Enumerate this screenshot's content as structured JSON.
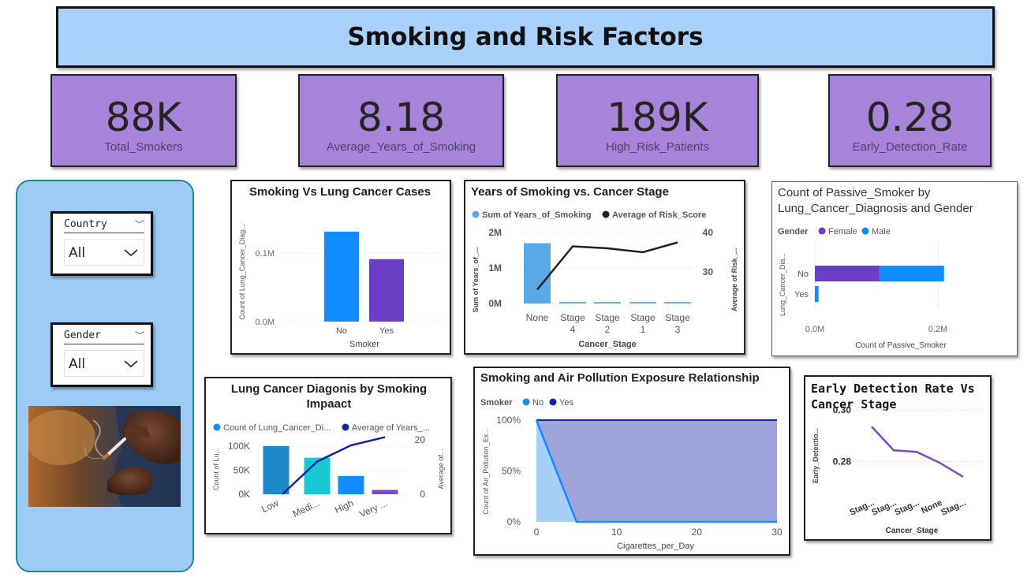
{
  "header": {
    "title": "Smoking and Risk Factors"
  },
  "kpis": [
    {
      "value": "88K",
      "label": "Total_Smokers"
    },
    {
      "value": "8.18",
      "label": "Average_Years_of_Smoking"
    },
    {
      "value": "189K",
      "label": "High_Risk_Patients"
    },
    {
      "value": "0.28",
      "label": "Early_Detection_Rate"
    }
  ],
  "filters": {
    "country": {
      "label": "Country",
      "value": "All"
    },
    "gender": {
      "label": "Gender",
      "value": "All"
    }
  },
  "chart_data": [
    {
      "id": "smoking_vs_cancer",
      "type": "bar",
      "title": "Smoking Vs Lung Cancer Cases",
      "xlabel": "Smoker",
      "ylabel": "Count of Lung_Cancer_Diag...",
      "categories": [
        "No",
        "Yes"
      ],
      "values": [
        131000,
        91000
      ],
      "colors": [
        "#118dff",
        "#6b3fc4"
      ],
      "yticks": [
        "0.0M",
        "0.1M"
      ],
      "ylim": [
        0,
        140000
      ]
    },
    {
      "id": "years_vs_stage",
      "type": "bar",
      "title": "Years of Smoking vs. Cancer Stage",
      "xlabel": "Cancer_Stage",
      "ylabel": "Sum of Years_of_...",
      "y2label": "Average of Risk_...",
      "categories": [
        "None",
        "Stage 4",
        "Stage 2",
        "Stage 1",
        "Stage 3"
      ],
      "series": [
        {
          "name": "Sum of Years_of_Smoking",
          "type": "bar",
          "color": "#5ba8e6",
          "values": [
            1700000,
            40000,
            40000,
            40000,
            40000
          ]
        },
        {
          "name": "Average of Risk_Score",
          "type": "line",
          "color": "#222222",
          "values": [
            25.5,
            36.5,
            36,
            35,
            37.5
          ]
        }
      ],
      "yticks": [
        "0M",
        "1M",
        "2M"
      ],
      "ylim": [
        0,
        2000000
      ],
      "y2ticks": [
        "30",
        "40"
      ],
      "y2lim": [
        22,
        40
      ]
    },
    {
      "id": "passive_smoker",
      "type": "bar",
      "title": "Count of Passive_Smoker by Lung_Cancer_Diagnosis and Gender",
      "legend_title": "Gender",
      "xlabel": "Count of Passive_Smoker",
      "ylabel": "Lung_Cancer_Dia...",
      "categories": [
        "No",
        "Yes"
      ],
      "series": [
        {
          "name": "Female",
          "color": "#6b3fc4",
          "values": [
            105000,
            1000
          ]
        },
        {
          "name": "Male",
          "color": "#118dff",
          "values": [
            105000,
            5000
          ]
        }
      ],
      "xticks": [
        "0.0M",
        "0.2M"
      ],
      "xlim": [
        0,
        200000
      ]
    },
    {
      "id": "diagnosis_by_impact",
      "type": "bar",
      "title": "Lung Cancer Diagonis by Smoking Impaact",
      "ylabel": "Count of Lu...",
      "y2label": "Average of...",
      "categories": [
        "Low",
        "Medi...",
        "High",
        "Very ..."
      ],
      "series": [
        {
          "name": "Count of Lung_Cancer_Di...",
          "type": "bar",
          "color": "#118dff",
          "values": [
            100000,
            76000,
            38000,
            9000
          ]
        },
        {
          "name": "Average of Years_...",
          "type": "line",
          "color": "#12239e",
          "values": [
            0,
            12,
            18,
            21
          ]
        }
      ],
      "bar_colors": [
        "#1e88c9",
        "#16c9d5",
        "#118dff",
        "#744ec2"
      ],
      "yticks": [
        "0K",
        "50K",
        "100K"
      ],
      "ylim": [
        0,
        100000
      ],
      "y2ticks": [
        "0",
        "20"
      ],
      "y2lim": [
        0,
        20
      ]
    },
    {
      "id": "air_pollution",
      "type": "area",
      "title": "Smoking and Air Pollution Exposure Relationship",
      "legend_title": "Smoker",
      "xlabel": "Cigarettes_per_Day",
      "ylabel": "Count of Air_Pollution_Ex...",
      "series": [
        {
          "name": "No",
          "color": "#118dff",
          "x": [
            0,
            5,
            30
          ],
          "y": [
            100,
            0,
            0
          ]
        },
        {
          "name": "Yes",
          "color": "#12239e",
          "x": [
            0,
            30
          ],
          "y": [
            100,
            100
          ]
        }
      ],
      "xticks": [
        "0",
        "10",
        "20",
        "30"
      ],
      "xlim": [
        0,
        30
      ],
      "yticks": [
        "0%",
        "50%",
        "100%"
      ],
      "ylim": [
        0,
        100
      ]
    },
    {
      "id": "early_detection",
      "type": "line",
      "title": "Early Detection Rate Vs Cancer Stage",
      "xlabel": "Cancer_Stage",
      "ylabel": "Early_Detectio...",
      "categories": [
        "Stag...",
        "Stag...",
        "Stag...",
        "None",
        "Stag..."
      ],
      "values": [
        0.2935,
        0.2843,
        0.2837,
        0.2795,
        0.274
      ],
      "color": "#744ec2",
      "yticks": [
        "0.28",
        "0.30"
      ],
      "ylim": [
        0.27,
        0.3
      ]
    }
  ]
}
